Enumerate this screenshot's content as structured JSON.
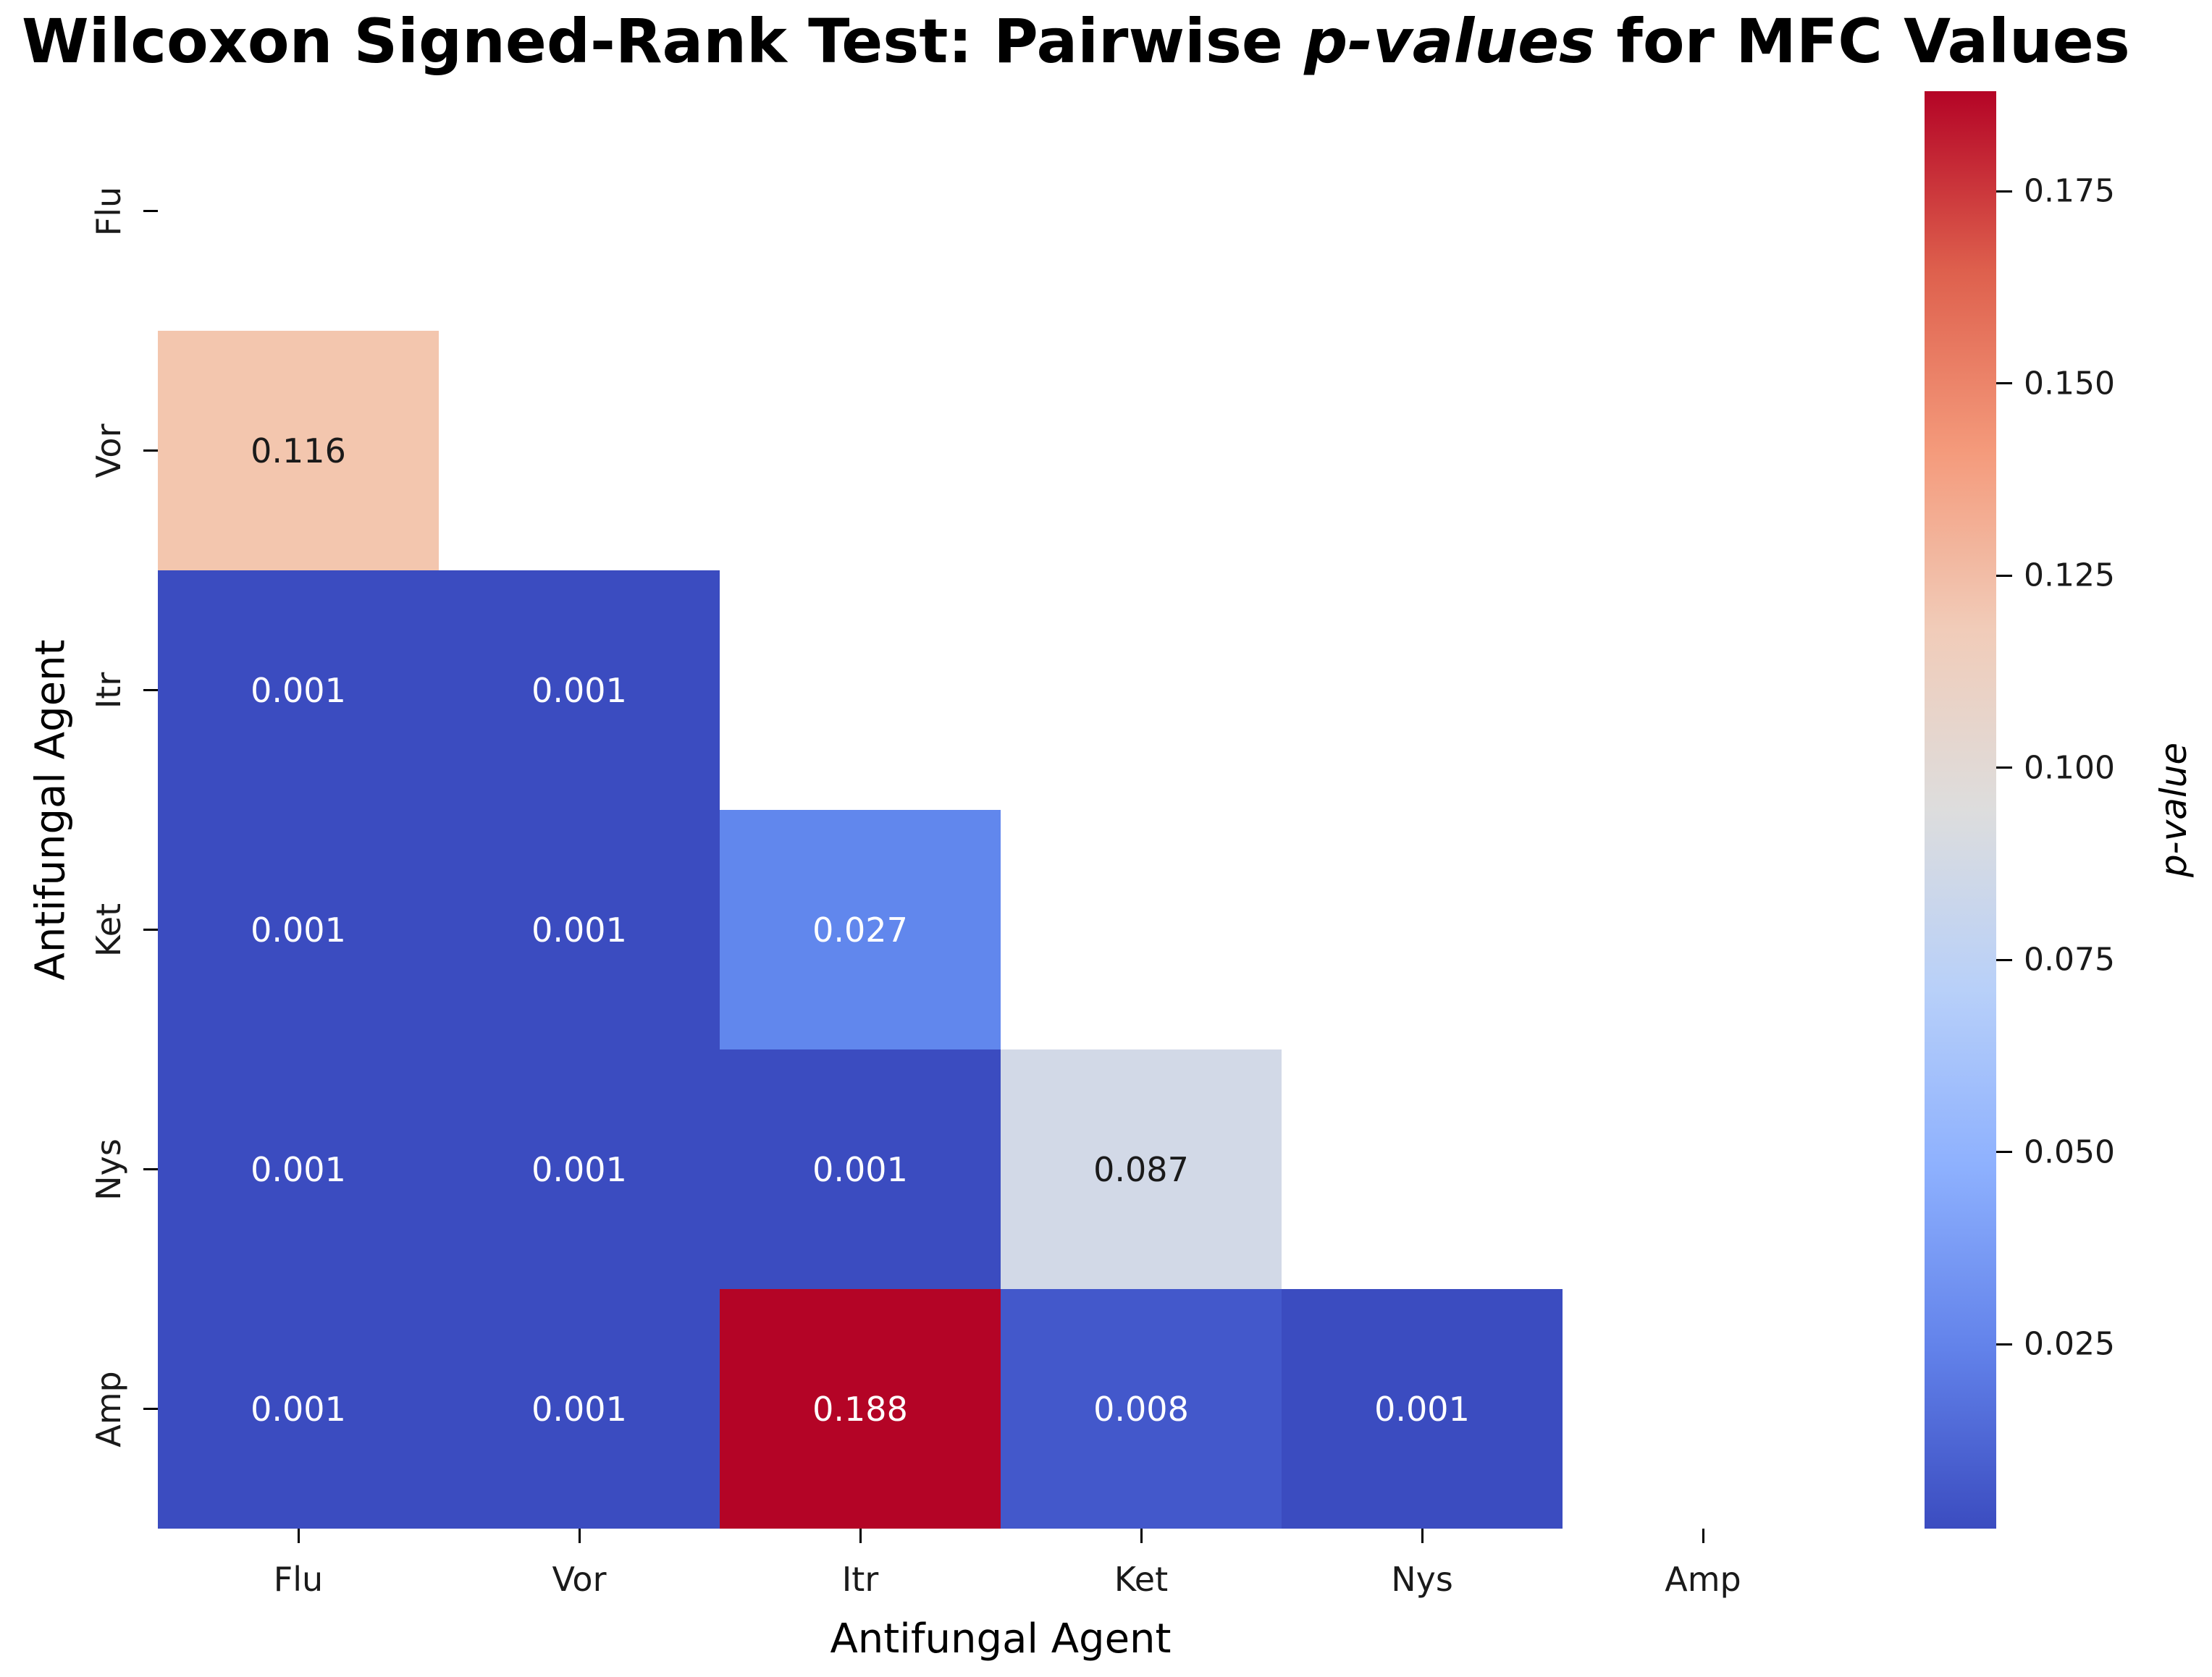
{
  "figure": {
    "title_prefix": "Wilcoxon Signed-Rank Test: Pairwise ",
    "title_italic": "p-values",
    "title_suffix": " for MFC Values",
    "x_axis_label": "Antifungal Agent",
    "y_axis_label": "Antifungal Agent"
  },
  "chart_data": {
    "type": "heatmap",
    "title": "Wilcoxon Signed-Rank Test: Pairwise p-values for MFC Values",
    "xlabel": "Antifungal Agent",
    "ylabel": "Antifungal Agent",
    "x_categories": [
      "Flu",
      "Vor",
      "Itr",
      "Ket",
      "Nys",
      "Amp"
    ],
    "y_categories": [
      "Flu",
      "Vor",
      "Itr",
      "Ket",
      "Nys",
      "Amp"
    ],
    "mask": "upper-triangle-and-diagonal-hidden",
    "colormap": "coolwarm",
    "vmin": 0.001,
    "vmax": 0.188,
    "background": "#ffffff",
    "colorbar": {
      "label": "p-value",
      "ticks": [
        0.025,
        0.05,
        0.075,
        0.1,
        0.125,
        0.15,
        0.175
      ],
      "gradient_bottom_to_top": [
        "#3b4cc0",
        "#6282ea",
        "#8db0fe",
        "#b8d0f9",
        "#dddddd",
        "#f1ccb9",
        "#f49a7b",
        "#de604d",
        "#b40426"
      ]
    },
    "cells": [
      {
        "row": "Vor",
        "col": "Flu",
        "value": 0.116,
        "label": "0.116",
        "color": "#f3c6ae",
        "text_color": "#1a1a1a"
      },
      {
        "row": "Itr",
        "col": "Flu",
        "value": 0.001,
        "label": "0.001",
        "color": "#3b4cc0",
        "text_color": "#ffffff"
      },
      {
        "row": "Itr",
        "col": "Vor",
        "value": 0.001,
        "label": "0.001",
        "color": "#3b4cc0",
        "text_color": "#ffffff"
      },
      {
        "row": "Ket",
        "col": "Flu",
        "value": 0.001,
        "label": "0.001",
        "color": "#3b4cc0",
        "text_color": "#ffffff"
      },
      {
        "row": "Ket",
        "col": "Vor",
        "value": 0.001,
        "label": "0.001",
        "color": "#3b4cc0",
        "text_color": "#ffffff"
      },
      {
        "row": "Ket",
        "col": "Itr",
        "value": 0.027,
        "label": "0.027",
        "color": "#6187ed",
        "text_color": "#ffffff"
      },
      {
        "row": "Nys",
        "col": "Flu",
        "value": 0.001,
        "label": "0.001",
        "color": "#3b4cc0",
        "text_color": "#ffffff"
      },
      {
        "row": "Nys",
        "col": "Vor",
        "value": 0.001,
        "label": "0.001",
        "color": "#3b4cc0",
        "text_color": "#ffffff"
      },
      {
        "row": "Nys",
        "col": "Itr",
        "value": 0.001,
        "label": "0.001",
        "color": "#3b4cc0",
        "text_color": "#ffffff"
      },
      {
        "row": "Nys",
        "col": "Ket",
        "value": 0.087,
        "label": "0.087",
        "color": "#d2d9e7",
        "text_color": "#1a1a1a"
      },
      {
        "row": "Amp",
        "col": "Flu",
        "value": 0.001,
        "label": "0.001",
        "color": "#3b4cc0",
        "text_color": "#ffffff"
      },
      {
        "row": "Amp",
        "col": "Vor",
        "value": 0.001,
        "label": "0.001",
        "color": "#3b4cc0",
        "text_color": "#ffffff"
      },
      {
        "row": "Amp",
        "col": "Itr",
        "value": 0.188,
        "label": "0.188",
        "color": "#b40426",
        "text_color": "#ffffff"
      },
      {
        "row": "Amp",
        "col": "Ket",
        "value": 0.008,
        "label": "0.008",
        "color": "#4358cb",
        "text_color": "#ffffff"
      },
      {
        "row": "Amp",
        "col": "Nys",
        "value": 0.001,
        "label": "0.001",
        "color": "#3b4cc0",
        "text_color": "#ffffff"
      }
    ]
  }
}
